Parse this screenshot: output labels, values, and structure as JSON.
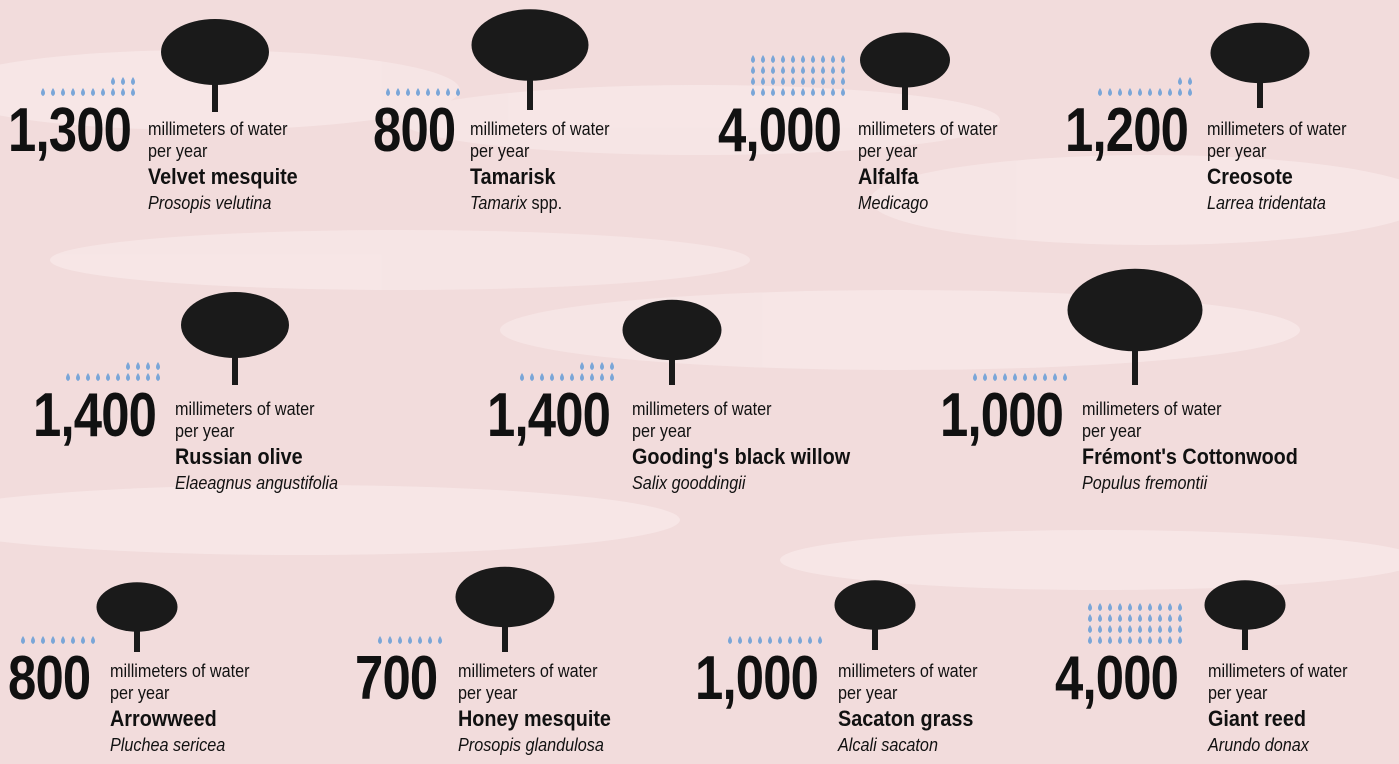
{
  "unit_line1": "millimeters of water",
  "unit_line2": "per year",
  "plants": [
    {
      "amount": "1,300",
      "name": "Velvet  mesquite",
      "scientific": "Prosopis velutina"
    },
    {
      "amount": "800",
      "name": "Tamarisk",
      "scientific": "Tamarix",
      "scientific_suffix": "spp."
    },
    {
      "amount": "4,000",
      "name": "Alfalfa",
      "scientific": "Medicago"
    },
    {
      "amount": "1,200",
      "name": "Creosote",
      "scientific": "Larrea tridentata"
    },
    {
      "amount": "1,400",
      "name": "Russian olive",
      "scientific": "Elaeagnus angustifolia"
    },
    {
      "amount": "1,400",
      "name": "Gooding's black willow",
      "scientific": "Salix gooddingii"
    },
    {
      "amount": "1,000",
      "name": "Frémont's Cottonwood",
      "scientific": "Populus fremontii"
    },
    {
      "amount": "800",
      "name": "Arrowweed",
      "scientific": "Pluchea sericea"
    },
    {
      "amount": "700",
      "name": "Honey mesquite",
      "scientific": "Prosopis glandulosa"
    },
    {
      "amount": "1,000",
      "name": "Sacaton grass",
      "scientific": "Alcali sacaton"
    },
    {
      "amount": "4,000",
      "name": "Giant reed",
      "scientific": "Arundo donax"
    }
  ]
}
